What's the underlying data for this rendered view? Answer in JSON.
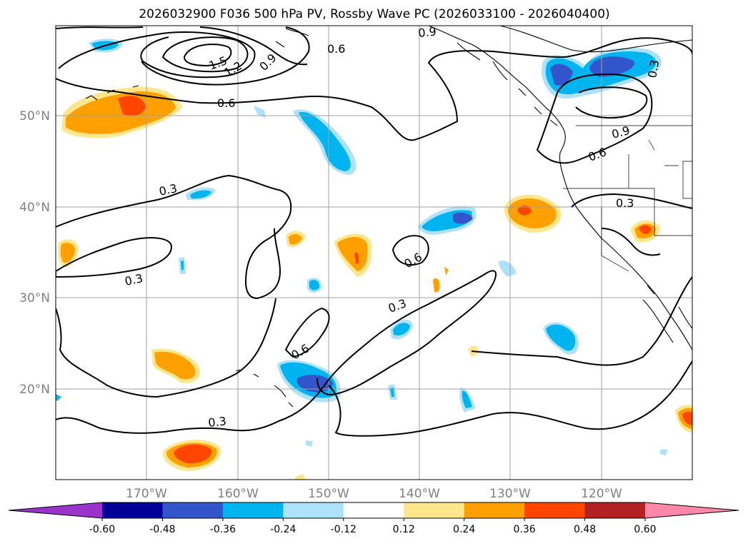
{
  "title": "2026032900 F036 500 hPa PV, Rossby Wave PC (2026033100 - 2026040400)",
  "map": {
    "lat_ticks": [
      "50°N",
      "40°N",
      "30°N",
      "20°N"
    ],
    "lon_ticks": [
      "170°W",
      "160°W",
      "150°W",
      "140°W",
      "130°W",
      "120°W"
    ],
    "grid": true,
    "contour_labels": [
      "1.5",
      "1.2",
      "0.9",
      "0.6",
      "0.9",
      "0.3",
      "0.6",
      "0.9",
      "0.6",
      "0.3",
      "0.3",
      "0.3",
      "0.6",
      "0.3",
      "0.6",
      "0.3"
    ]
  },
  "colorbar": {
    "levels": [
      "-0.60",
      "-0.48",
      "-0.36",
      "-0.24",
      "-0.12",
      "0.12",
      "0.24",
      "0.36",
      "0.48",
      "0.60"
    ],
    "colors": [
      "#9933cc",
      "#000099",
      "#3355cc",
      "#00b4f0",
      "#aee1fa",
      "#ffffff",
      "#fee68c",
      "#ffa000",
      "#ff4500",
      "#b22222",
      "#ff88aa"
    ],
    "extend": "both"
  }
}
